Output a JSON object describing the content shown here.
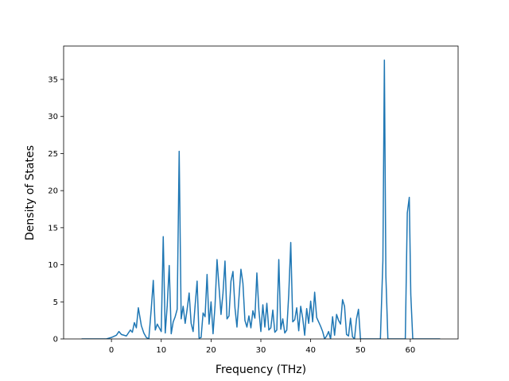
{
  "chart_data": {
    "type": "line",
    "title": "",
    "xlabel": "Frequency (THz)",
    "ylabel": "Density of States",
    "xlim": [
      -9.6,
      69.6
    ],
    "ylim": [
      0,
      39.5
    ],
    "xticks": [
      0,
      10,
      20,
      30,
      40,
      50,
      60
    ],
    "yticks": [
      0,
      5,
      10,
      15,
      20,
      25,
      30,
      35
    ],
    "grid": false,
    "legend": "none",
    "colors": {
      "line": "#1f77b4",
      "axes": "#000000",
      "background": "#ffffff"
    },
    "series": [
      {
        "x": [
          -6,
          -1,
          0,
          1,
          1.5,
          2,
          3,
          3.8,
          4.2,
          4.6,
          5,
          5.4,
          6,
          6.5,
          7,
          7.5,
          8,
          8.4,
          8.8,
          9.2,
          9.6,
          10,
          10.4,
          10.8,
          11.2,
          11.6,
          12,
          12.4,
          12.8,
          13.2,
          13.6,
          14,
          14.4,
          14.8,
          15.2,
          15.6,
          16,
          16.4,
          16.8,
          17.2,
          17.6,
          18,
          18.4,
          18.8,
          19.2,
          19.6,
          20,
          20.4,
          20.8,
          21.2,
          21.6,
          22,
          22.4,
          22.8,
          23.2,
          23.6,
          24,
          24.4,
          24.8,
          25.2,
          25.6,
          26,
          26.4,
          26.8,
          27.2,
          27.6,
          28,
          28.4,
          28.8,
          29.2,
          29.6,
          30,
          30.4,
          30.8,
          31.2,
          31.6,
          32,
          32.4,
          32.8,
          33.2,
          33.6,
          34,
          34.4,
          34.8,
          35.2,
          35.6,
          36,
          36.4,
          36.8,
          37.2,
          37.6,
          38,
          38.4,
          38.8,
          39.2,
          39.6,
          40,
          40.4,
          40.8,
          41.2,
          41.6,
          42,
          42.4,
          42.8,
          43.2,
          43.6,
          44,
          44.4,
          44.8,
          45.2,
          45.6,
          46,
          46.4,
          46.8,
          47.2,
          47.6,
          48,
          48.4,
          48.8,
          49.2,
          49.6,
          50,
          50.4,
          51,
          54,
          54.5,
          54.8,
          55.1,
          55.5,
          56,
          59,
          59.4,
          59.8,
          60.1,
          60.5,
          61,
          66
        ],
        "y": [
          0,
          0,
          0.2,
          0.5,
          1.0,
          0.6,
          0.4,
          1.2,
          0.9,
          2.2,
          1.5,
          4.2,
          1.8,
          0.8,
          0.2,
          0,
          4.1,
          7.9,
          1.2,
          2.0,
          1.5,
          1.0,
          13.8,
          0.8,
          4.5,
          9.9,
          0.7,
          2.3,
          3.0,
          4.0,
          25.3,
          2.7,
          4.4,
          2.1,
          4.0,
          6.2,
          2.1,
          1.0,
          4.5,
          7.8,
          0.1,
          0.2,
          3.5,
          3.0,
          8.7,
          2.0,
          5.0,
          0.7,
          4.5,
          10.7,
          7.0,
          3.3,
          6.2,
          10.5,
          2.7,
          3.1,
          7.8,
          9.1,
          4.2,
          1.6,
          5.5,
          9.4,
          7.5,
          2.5,
          1.6,
          3.1,
          1.5,
          3.8,
          2.8,
          8.9,
          3.9,
          1.0,
          4.6,
          1.6,
          4.8,
          1.2,
          1.5,
          3.9,
          0.9,
          1.2,
          10.7,
          1.3,
          2.7,
          0.8,
          1.2,
          6.0,
          13.0,
          2.3,
          2.6,
          4.2,
          1.1,
          4.4,
          2.8,
          0.5,
          4.1,
          2.1,
          5.1,
          2.3,
          6.3,
          2.9,
          2.3,
          1.7,
          1.0,
          0,
          0.4,
          1.0,
          0,
          3.0,
          0.5,
          3.3,
          2.5,
          2.0,
          5.3,
          4.4,
          0.6,
          0.4,
          2.8,
          0.3,
          0,
          2.7,
          4.0,
          0,
          0,
          0,
          0,
          10.5,
          37.6,
          8.5,
          0,
          0,
          0,
          17.0,
          19.1,
          6.0,
          0,
          0,
          0
        ]
      }
    ]
  }
}
